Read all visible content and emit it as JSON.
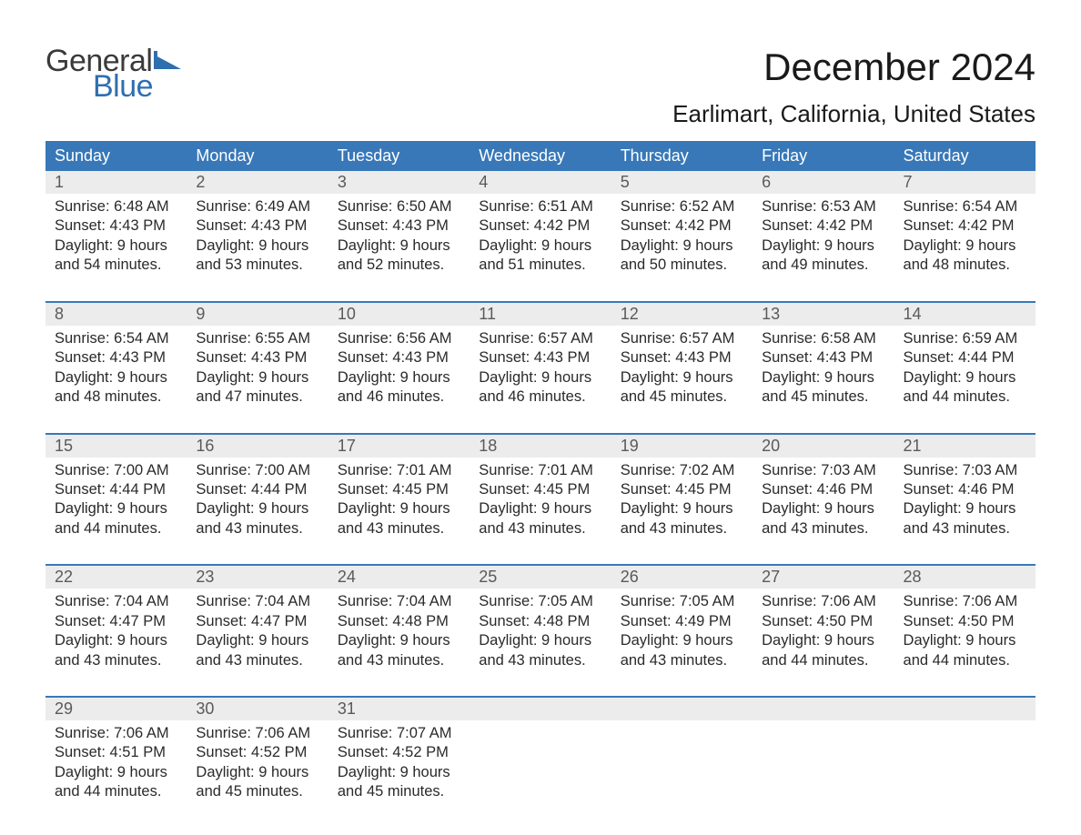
{
  "logo": {
    "text1": "General",
    "text2": "Blue",
    "shape_color": "#2f6fb0",
    "text1_color": "#3a3a3a"
  },
  "header": {
    "month_title": "December 2024",
    "location": "Earlimart, California, United States"
  },
  "styling": {
    "header_bg": "#3878b8",
    "header_text": "#ffffff",
    "daynum_bg": "#ececec",
    "daynum_text": "#5a5a5a",
    "body_text": "#2a2a2a",
    "week_divider": "#3878b8",
    "page_bg": "#ffffff",
    "font_family": "Arial",
    "title_fontsize": 42,
    "location_fontsize": 26,
    "weekday_fontsize": 18,
    "daynum_fontsize": 18,
    "details_fontsize": 16.5
  },
  "weekdays": [
    "Sunday",
    "Monday",
    "Tuesday",
    "Wednesday",
    "Thursday",
    "Friday",
    "Saturday"
  ],
  "weeks": [
    [
      {
        "day": "1",
        "sunrise": "Sunrise: 6:48 AM",
        "sunset": "Sunset: 4:43 PM",
        "dl1": "Daylight: 9 hours",
        "dl2": "and 54 minutes."
      },
      {
        "day": "2",
        "sunrise": "Sunrise: 6:49 AM",
        "sunset": "Sunset: 4:43 PM",
        "dl1": "Daylight: 9 hours",
        "dl2": "and 53 minutes."
      },
      {
        "day": "3",
        "sunrise": "Sunrise: 6:50 AM",
        "sunset": "Sunset: 4:43 PM",
        "dl1": "Daylight: 9 hours",
        "dl2": "and 52 minutes."
      },
      {
        "day": "4",
        "sunrise": "Sunrise: 6:51 AM",
        "sunset": "Sunset: 4:42 PM",
        "dl1": "Daylight: 9 hours",
        "dl2": "and 51 minutes."
      },
      {
        "day": "5",
        "sunrise": "Sunrise: 6:52 AM",
        "sunset": "Sunset: 4:42 PM",
        "dl1": "Daylight: 9 hours",
        "dl2": "and 50 minutes."
      },
      {
        "day": "6",
        "sunrise": "Sunrise: 6:53 AM",
        "sunset": "Sunset: 4:42 PM",
        "dl1": "Daylight: 9 hours",
        "dl2": "and 49 minutes."
      },
      {
        "day": "7",
        "sunrise": "Sunrise: 6:54 AM",
        "sunset": "Sunset: 4:42 PM",
        "dl1": "Daylight: 9 hours",
        "dl2": "and 48 minutes."
      }
    ],
    [
      {
        "day": "8",
        "sunrise": "Sunrise: 6:54 AM",
        "sunset": "Sunset: 4:43 PM",
        "dl1": "Daylight: 9 hours",
        "dl2": "and 48 minutes."
      },
      {
        "day": "9",
        "sunrise": "Sunrise: 6:55 AM",
        "sunset": "Sunset: 4:43 PM",
        "dl1": "Daylight: 9 hours",
        "dl2": "and 47 minutes."
      },
      {
        "day": "10",
        "sunrise": "Sunrise: 6:56 AM",
        "sunset": "Sunset: 4:43 PM",
        "dl1": "Daylight: 9 hours",
        "dl2": "and 46 minutes."
      },
      {
        "day": "11",
        "sunrise": "Sunrise: 6:57 AM",
        "sunset": "Sunset: 4:43 PM",
        "dl1": "Daylight: 9 hours",
        "dl2": "and 46 minutes."
      },
      {
        "day": "12",
        "sunrise": "Sunrise: 6:57 AM",
        "sunset": "Sunset: 4:43 PM",
        "dl1": "Daylight: 9 hours",
        "dl2": "and 45 minutes."
      },
      {
        "day": "13",
        "sunrise": "Sunrise: 6:58 AM",
        "sunset": "Sunset: 4:43 PM",
        "dl1": "Daylight: 9 hours",
        "dl2": "and 45 minutes."
      },
      {
        "day": "14",
        "sunrise": "Sunrise: 6:59 AM",
        "sunset": "Sunset: 4:44 PM",
        "dl1": "Daylight: 9 hours",
        "dl2": "and 44 minutes."
      }
    ],
    [
      {
        "day": "15",
        "sunrise": "Sunrise: 7:00 AM",
        "sunset": "Sunset: 4:44 PM",
        "dl1": "Daylight: 9 hours",
        "dl2": "and 44 minutes."
      },
      {
        "day": "16",
        "sunrise": "Sunrise: 7:00 AM",
        "sunset": "Sunset: 4:44 PM",
        "dl1": "Daylight: 9 hours",
        "dl2": "and 43 minutes."
      },
      {
        "day": "17",
        "sunrise": "Sunrise: 7:01 AM",
        "sunset": "Sunset: 4:45 PM",
        "dl1": "Daylight: 9 hours",
        "dl2": "and 43 minutes."
      },
      {
        "day": "18",
        "sunrise": "Sunrise: 7:01 AM",
        "sunset": "Sunset: 4:45 PM",
        "dl1": "Daylight: 9 hours",
        "dl2": "and 43 minutes."
      },
      {
        "day": "19",
        "sunrise": "Sunrise: 7:02 AM",
        "sunset": "Sunset: 4:45 PM",
        "dl1": "Daylight: 9 hours",
        "dl2": "and 43 minutes."
      },
      {
        "day": "20",
        "sunrise": "Sunrise: 7:03 AM",
        "sunset": "Sunset: 4:46 PM",
        "dl1": "Daylight: 9 hours",
        "dl2": "and 43 minutes."
      },
      {
        "day": "21",
        "sunrise": "Sunrise: 7:03 AM",
        "sunset": "Sunset: 4:46 PM",
        "dl1": "Daylight: 9 hours",
        "dl2": "and 43 minutes."
      }
    ],
    [
      {
        "day": "22",
        "sunrise": "Sunrise: 7:04 AM",
        "sunset": "Sunset: 4:47 PM",
        "dl1": "Daylight: 9 hours",
        "dl2": "and 43 minutes."
      },
      {
        "day": "23",
        "sunrise": "Sunrise: 7:04 AM",
        "sunset": "Sunset: 4:47 PM",
        "dl1": "Daylight: 9 hours",
        "dl2": "and 43 minutes."
      },
      {
        "day": "24",
        "sunrise": "Sunrise: 7:04 AM",
        "sunset": "Sunset: 4:48 PM",
        "dl1": "Daylight: 9 hours",
        "dl2": "and 43 minutes."
      },
      {
        "day": "25",
        "sunrise": "Sunrise: 7:05 AM",
        "sunset": "Sunset: 4:48 PM",
        "dl1": "Daylight: 9 hours",
        "dl2": "and 43 minutes."
      },
      {
        "day": "26",
        "sunrise": "Sunrise: 7:05 AM",
        "sunset": "Sunset: 4:49 PM",
        "dl1": "Daylight: 9 hours",
        "dl2": "and 43 minutes."
      },
      {
        "day": "27",
        "sunrise": "Sunrise: 7:06 AM",
        "sunset": "Sunset: 4:50 PM",
        "dl1": "Daylight: 9 hours",
        "dl2": "and 44 minutes."
      },
      {
        "day": "28",
        "sunrise": "Sunrise: 7:06 AM",
        "sunset": "Sunset: 4:50 PM",
        "dl1": "Daylight: 9 hours",
        "dl2": "and 44 minutes."
      }
    ],
    [
      {
        "day": "29",
        "sunrise": "Sunrise: 7:06 AM",
        "sunset": "Sunset: 4:51 PM",
        "dl1": "Daylight: 9 hours",
        "dl2": "and 44 minutes."
      },
      {
        "day": "30",
        "sunrise": "Sunrise: 7:06 AM",
        "sunset": "Sunset: 4:52 PM",
        "dl1": "Daylight: 9 hours",
        "dl2": "and 45 minutes."
      },
      {
        "day": "31",
        "sunrise": "Sunrise: 7:07 AM",
        "sunset": "Sunset: 4:52 PM",
        "dl1": "Daylight: 9 hours",
        "dl2": "and 45 minutes."
      },
      null,
      null,
      null,
      null
    ]
  ]
}
